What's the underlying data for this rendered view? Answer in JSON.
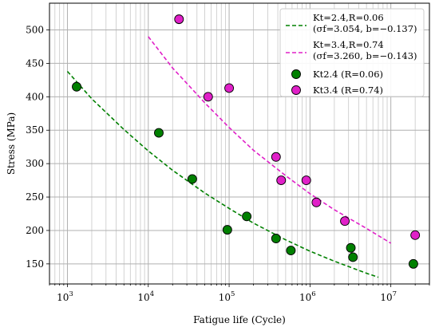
{
  "chart_data": {
    "type": "scatter",
    "xscale": "log",
    "xlim": [
      600,
      30000000
    ],
    "ylim": [
      120,
      540
    ],
    "xlabel": "Fatigue life (Cycle)",
    "ylabel": "Stress (MPa)",
    "x_ticks": [
      {
        "value": 1000,
        "base": "10",
        "exp": "3"
      },
      {
        "value": 10000,
        "base": "10",
        "exp": "4"
      },
      {
        "value": 100000,
        "base": "10",
        "exp": "5"
      },
      {
        "value": 1000000,
        "base": "10",
        "exp": "6"
      },
      {
        "value": 10000000,
        "base": "10",
        "exp": "7"
      }
    ],
    "y_ticks": [
      150,
      200,
      250,
      300,
      350,
      400,
      450,
      500
    ],
    "grid": true,
    "legend_position": "top-right",
    "fit_lines": [
      {
        "legend_line1": "Kt=2.4,R=0.06",
        "legend_line2": "(σf=3.054, b=−0.137)",
        "color": "#008000",
        "x": [
          1000,
          2000,
          5000,
          10000,
          20000,
          50000,
          100000,
          200000,
          500000,
          1000000,
          2000000,
          5000000,
          7000000
        ],
        "y": [
          438,
          397,
          351,
          319,
          290,
          256,
          233,
          211,
          186,
          169,
          154,
          136,
          130
        ]
      },
      {
        "legend_line1": "Kt=3.4,R=0.74",
        "legend_line2": "(σf=3.260, b=−0.143)",
        "color": "#e020c8",
        "x": [
          10000,
          20000,
          50000,
          100000,
          200000,
          500000,
          1000000,
          2000000,
          5000000,
          10000000
        ],
        "y": [
          490,
          443,
          391,
          354,
          320,
          282,
          255,
          231,
          203,
          181
        ]
      }
    ],
    "series": [
      {
        "name": "Kt2.4 (R=0.06)",
        "color": "#008000",
        "x": [
          1300,
          13500,
          35000,
          95000,
          165000,
          380000,
          580000,
          3200000,
          3400000,
          19000000
        ],
        "y": [
          415,
          346,
          277,
          201,
          221,
          188,
          170,
          174,
          160,
          150
        ]
      },
      {
        "name": "Kt3.4 (R=0.74)",
        "color": "#e020c8",
        "x": [
          24000,
          55000,
          100000,
          380000,
          440000,
          900000,
          1200000,
          2700000,
          20000000
        ],
        "y": [
          516,
          400,
          413,
          310,
          275,
          275,
          242,
          214,
          193
        ]
      }
    ]
  }
}
